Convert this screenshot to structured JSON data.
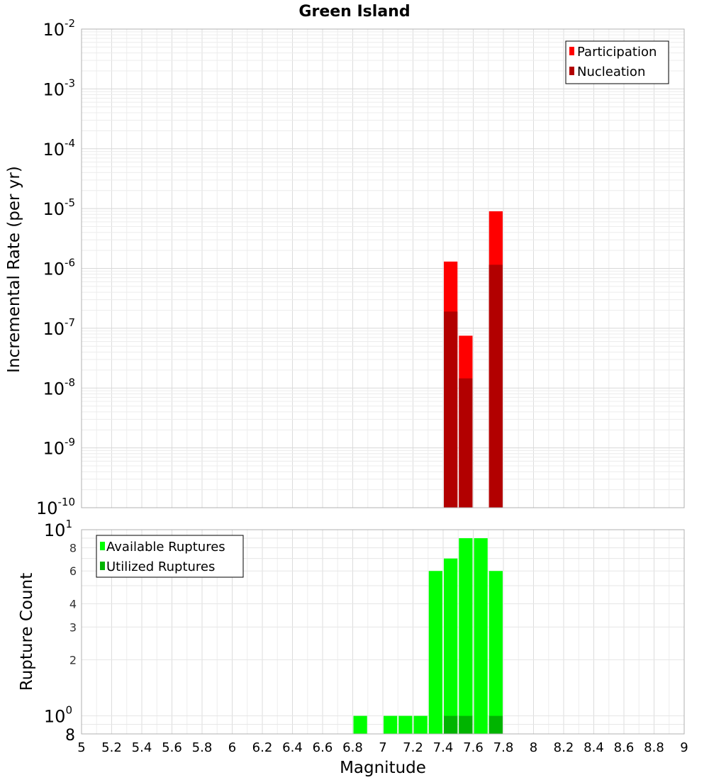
{
  "chart_data": [
    {
      "type": "bar",
      "title": "Green Island",
      "xlabel": "",
      "ylabel": "Incremental Rate (per yr)",
      "xlim": [
        5,
        9
      ],
      "ylim": [
        1e-10,
        0.01
      ],
      "yscale": "log",
      "grid": true,
      "legend_position": "top-right",
      "bin_width": 0.1,
      "y_ticks": [
        {
          "base": "10",
          "exp": "-2",
          "value": 0.01
        },
        {
          "base": "10",
          "exp": "-3",
          "value": 0.001
        },
        {
          "base": "10",
          "exp": "-4",
          "value": 0.0001
        },
        {
          "base": "10",
          "exp": "-5",
          "value": 1e-05
        },
        {
          "base": "10",
          "exp": "-6",
          "value": 1e-06
        },
        {
          "base": "10",
          "exp": "-7",
          "value": 1e-07
        },
        {
          "base": "10",
          "exp": "-8",
          "value": 1e-08
        },
        {
          "base": "10",
          "exp": "-9",
          "value": 1e-09
        },
        {
          "base": "10",
          "exp": "-10",
          "value": 1e-10
        }
      ],
      "series": [
        {
          "name": "Participation",
          "color": "#ff0000",
          "x": [
            7.45,
            7.55,
            7.75
          ],
          "values": [
            1.3e-06,
            7.5e-08,
            9e-06
          ]
        },
        {
          "name": "Nucleation",
          "color": "#b20000",
          "x": [
            7.45,
            7.55,
            7.75
          ],
          "values": [
            1.9e-07,
            1.45e-08,
            1.15e-06
          ]
        }
      ]
    },
    {
      "type": "bar",
      "title": "",
      "xlabel": "Magnitude",
      "ylabel": "Rupture Count",
      "xlim": [
        5,
        9
      ],
      "ylim": [
        0.8,
        10
      ],
      "yscale": "log",
      "grid": true,
      "legend_position": "top-left",
      "bin_width": 0.1,
      "x_ticks": [
        "5",
        "5.2",
        "5.4",
        "5.6",
        "5.8",
        "6",
        "6.2",
        "6.4",
        "6.6",
        "6.8",
        "7",
        "7.2",
        "7.4",
        "7.6",
        "7.8",
        "8",
        "8.2",
        "8.4",
        "8.6",
        "8.8",
        "9"
      ],
      "y_ticks_major": [
        {
          "base": "10",
          "exp": "1",
          "value": 10
        },
        {
          "base": "10",
          "exp": "0",
          "value": 1
        }
      ],
      "y_ticks_minor": [
        {
          "label": "8",
          "value": 8
        },
        {
          "label": "6",
          "value": 6
        },
        {
          "label": "4",
          "value": 4
        },
        {
          "label": "3",
          "value": 3
        },
        {
          "label": "2",
          "value": 2
        }
      ],
      "y_bottom_label": "8",
      "series": [
        {
          "name": "Available Ruptures",
          "color": "#00ff00",
          "x": [
            6.85,
            7.05,
            7.15,
            7.25,
            7.35,
            7.45,
            7.55,
            7.65,
            7.75
          ],
          "values": [
            1,
            1,
            1,
            1,
            6,
            7,
            9,
            9,
            6
          ]
        },
        {
          "name": "Utilized Ruptures",
          "color": "#00b400",
          "x": [
            7.45,
            7.55,
            7.75
          ],
          "values": [
            1,
            1,
            1
          ]
        }
      ]
    }
  ]
}
